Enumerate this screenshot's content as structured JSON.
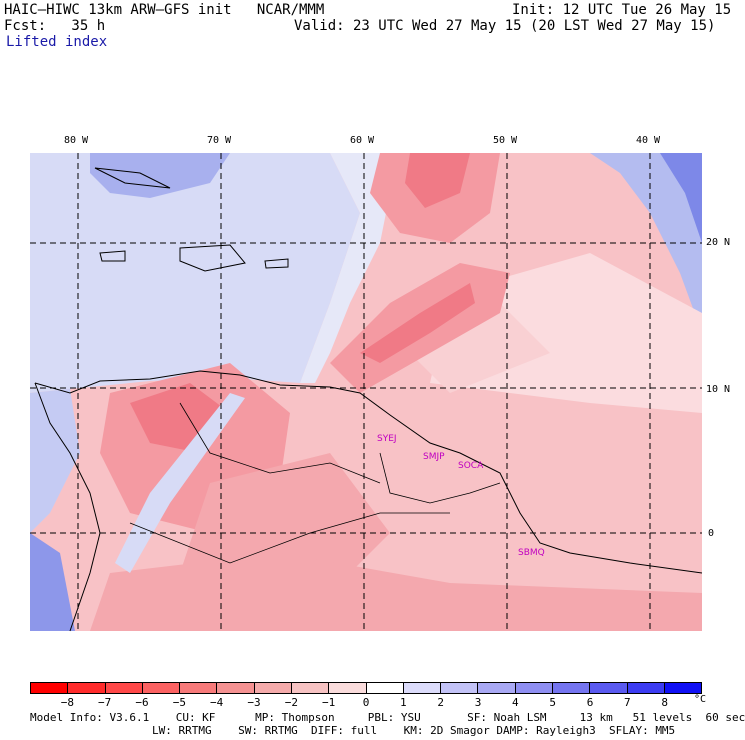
{
  "header": {
    "title": "HAIC–HIWC 13km ARW–GFS init   NCAR/MMM",
    "forecast": "Fcst:   35 h",
    "field": "Lifted index",
    "init": "Init: 12 UTC Tue 26 May 15",
    "valid": "Valid: 23 UTC Wed 27 May 15 (20 LST Wed 27 May 15)"
  },
  "map": {
    "lon_labels": [
      "80 W",
      "70 W",
      "60 W",
      "50 W",
      "40 W"
    ],
    "lat_labels": [
      "20 N",
      "10 N",
      "0"
    ],
    "stations": [
      "SYEJ",
      "SMJP",
      "SOCA",
      "SBMQ"
    ],
    "colors": {
      "deep_red": "#f07a86",
      "red": "#f49aa2",
      "pink": "#f8c2c6",
      "light_pink": "#fbdcdf",
      "white": "#ffffff",
      "light_blue": "#d7dbf6",
      "blue": "#a8b0ee",
      "deep_blue": "#6f7ce8"
    }
  },
  "colorbar": {
    "ticks": [
      "−8",
      "−7",
      "−6",
      "−5",
      "−4",
      "−3",
      "−2",
      "−1",
      "0",
      "1",
      "2",
      "3",
      "4",
      "5",
      "6",
      "7",
      "8"
    ],
    "unit": "°C",
    "colors": [
      "#ff0000",
      "#ff2b2b",
      "#ff4848",
      "#fb6262",
      "#f77a7a",
      "#f59292",
      "#f5abab",
      "#f7c3c3",
      "#fadcdc",
      "#ffffff",
      "#dcdcfb",
      "#c3c3f7",
      "#a9a9f4",
      "#8f8ff2",
      "#7575f0",
      "#5a5af0",
      "#3c3cf2",
      "#1010f5"
    ]
  },
  "footer": {
    "line1": "Model Info: V3.6.1    CU: KF      MP: Thompson     PBL: YSU       SF: Noah LSM     13 km   51 levels  60 sec",
    "line2": "LW: RRTMG    SW: RRTMG  DIFF: full    KM: 2D Smagor DAMP: Rayleigh3  SFLAY: MM5"
  }
}
